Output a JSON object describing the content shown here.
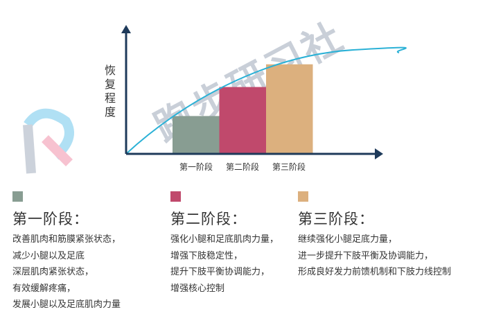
{
  "chart_data": {
    "type": "bar",
    "ylabel": "恢复程度",
    "categories": [
      "第一阶段",
      "第二阶段",
      "第三阶段"
    ],
    "values": [
      0.3,
      0.53,
      0.71
    ],
    "colors": [
      "#889d92",
      "#c0496c",
      "#dcb07e"
    ],
    "curve_color": "#2bb1d6",
    "axis_color": "#1e3a5a",
    "grid": false
  },
  "stages": [
    {
      "color": "#889d92",
      "title": "第一阶段：",
      "lines": [
        "改善肌肉和筋膜紧张状态，",
        "减少小腿以及足底",
        "深层肌肉紧张状态，",
        "有效缓解疼痛，",
        "发展小腿以及足底肌肉力量"
      ]
    },
    {
      "color": "#c0496c",
      "title": "第二阶段：",
      "lines": [
        "强化小腿和足底肌肉力量，",
        "增强下肢稳定性，",
        "提升下肢平衡协调能力，",
        "增强核心控制"
      ]
    },
    {
      "color": "#dcb07e",
      "title": "第三阶段：",
      "lines": [
        "继续强化小腿足底力量，",
        "进一步提升下肢平衡及协调能力，",
        "形成良好发力前馈机制和下肢力线控制"
      ]
    }
  ],
  "watermark": {
    "text": "跑步研习社",
    "logo_colors": [
      "#b7bfcc",
      "#f4a9bd",
      "#8fd3f0"
    ]
  }
}
